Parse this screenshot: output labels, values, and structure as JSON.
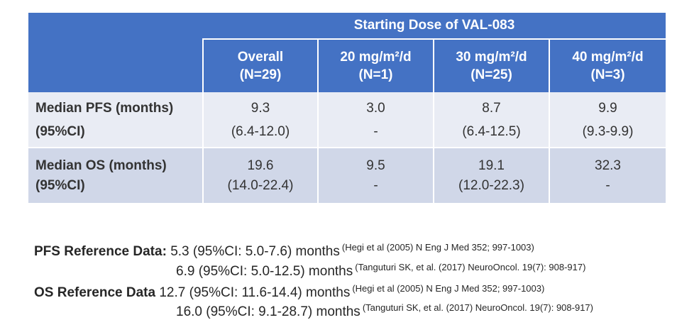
{
  "header": {
    "group_label": "Starting Dose of VAL-083",
    "columns": [
      {
        "line1": "Overall",
        "line2": "(N=29)"
      },
      {
        "line1": "20 mg/m²/d",
        "line2": "(N=1)"
      },
      {
        "line1": "30 mg/m²/d",
        "line2": "(N=25)"
      },
      {
        "line1": "40 mg/m²/d",
        "line2": "(N=3)"
      }
    ]
  },
  "rows": [
    {
      "label_line1": "Median PFS (months)",
      "label_line2": "(95%CI)",
      "cells": [
        {
          "value": "9.3",
          "ci": "(6.4-12.0)"
        },
        {
          "value": "3.0",
          "ci": "-"
        },
        {
          "value": "8.7",
          "ci": "(6.4-12.5)"
        },
        {
          "value": "9.9",
          "ci": "(9.3-9.9)"
        }
      ]
    },
    {
      "label_line1": "Median OS (months)",
      "label_line2": "(95%CI)",
      "cells": [
        {
          "value": "19.6",
          "ci": "(14.0-22.4)"
        },
        {
          "value": "9.5",
          "ci": "-"
        },
        {
          "value": "19.1",
          "ci": "(12.0-22.3)"
        },
        {
          "value": "32.3",
          "ci": "-"
        }
      ]
    }
  ],
  "references": {
    "pfs": {
      "label": "PFS Reference Data:",
      "entries": [
        {
          "text": "5.3 (95%CI: 5.0-7.6) months",
          "cite": "(Hegi  et al (2005) N Eng J Med 352; 997-1003)"
        },
        {
          "text": "6.9 (95%CI: 5.0-12.5) months",
          "cite": "(Tanguturi SK, et al. (2017) NeuroOncol. 19(7): 908-917)"
        }
      ]
    },
    "os": {
      "label": "OS Reference Data",
      "entries": [
        {
          "text": "12.7 (95%CI: 11.6-14.4) months",
          "cite": "(Hegi  et al (2005) N Eng J Med 352; 997-1003)"
        },
        {
          "text": "16.0 (95%CI: 9.1-28.7) months",
          "cite": "(Tanguturi SK, et al. (2017) NeuroOncol. 19(7): 908-917)"
        }
      ]
    }
  }
}
